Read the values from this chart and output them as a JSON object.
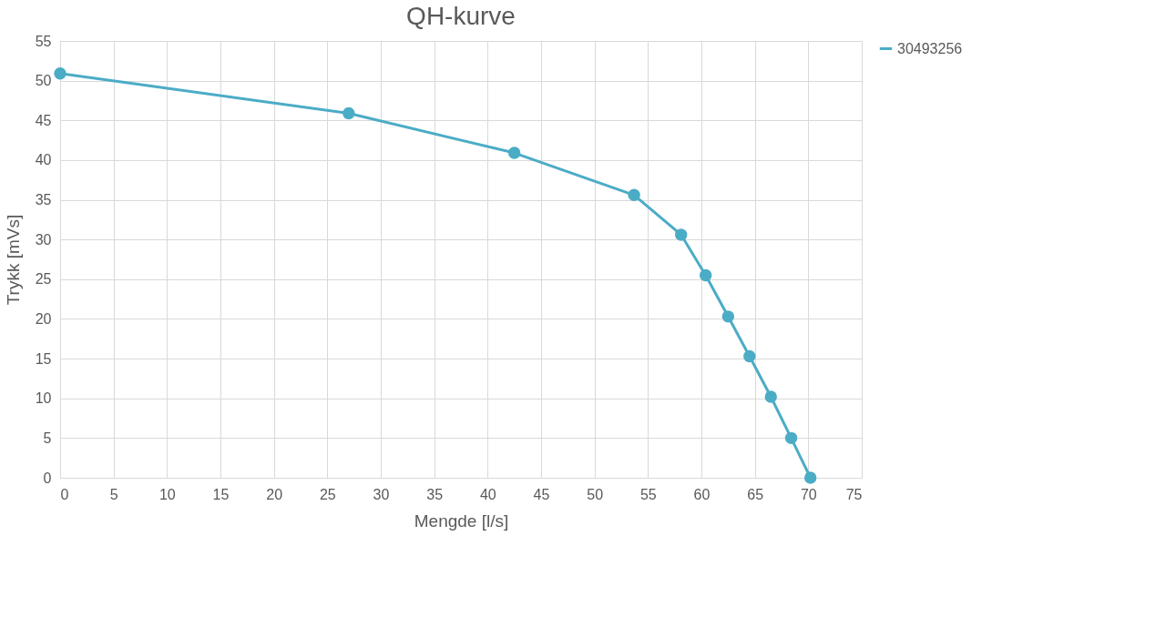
{
  "chart_data": {
    "type": "line",
    "title": "QH-kurve",
    "xlabel": "Mengde [l/s]",
    "ylabel": "Trykk [mVs]",
    "x": [
      0,
      27.0,
      42.5,
      53.7,
      58.1,
      60.4,
      62.5,
      64.5,
      66.5,
      68.4,
      70.2
    ],
    "series": [
      {
        "name": "30493256",
        "color": "#4bacc6",
        "values": [
          50.9,
          45.9,
          40.9,
          35.6,
          30.6,
          25.5,
          20.3,
          15.3,
          10.2,
          5.0,
          0
        ]
      }
    ],
    "xlim": [
      0,
      75
    ],
    "xticks": [
      0,
      5,
      10,
      15,
      20,
      25,
      30,
      35,
      40,
      45,
      50,
      55,
      60,
      65,
      70,
      75
    ],
    "ylim": [
      0,
      55
    ],
    "yticks": [
      0,
      5,
      10,
      15,
      20,
      25,
      30,
      35,
      40,
      45,
      50,
      55
    ],
    "grid": true,
    "legend": "right",
    "marker": "circle",
    "line_style": "solid"
  }
}
